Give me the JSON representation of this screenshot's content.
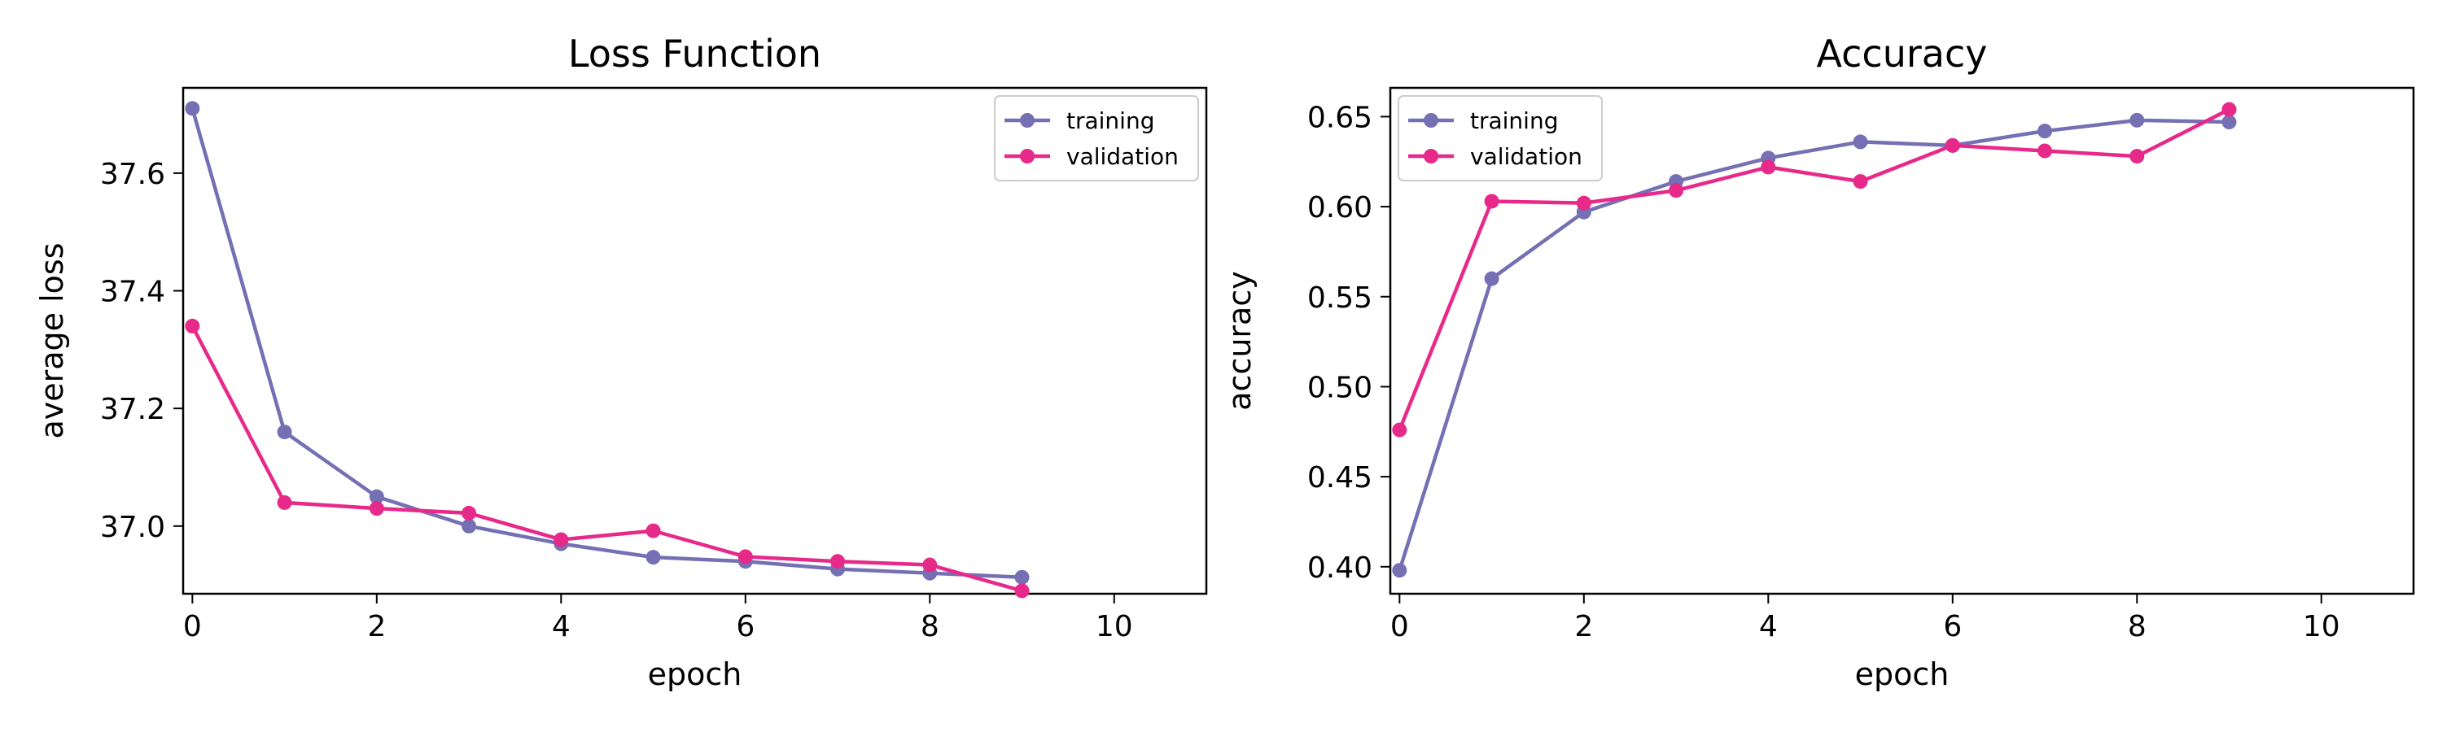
{
  "chart_data": [
    {
      "type": "line",
      "title": "Loss Function",
      "xlabel": "epoch",
      "ylabel": "average loss",
      "xlim": [
        -0.1,
        11
      ],
      "ylim": [
        36.885,
        37.745
      ],
      "xticks": [
        0,
        2,
        4,
        6,
        8,
        10
      ],
      "yticks": [
        37.0,
        37.2,
        37.4,
        37.6
      ],
      "ytick_labels": [
        "37.0",
        "37.2",
        "37.4",
        "37.6"
      ],
      "legend_position": "top-right",
      "grid": false,
      "x": [
        0,
        1,
        2,
        3,
        4,
        5,
        6,
        7,
        8,
        9
      ],
      "series": [
        {
          "name": "training",
          "color": "#7570b3",
          "values": [
            37.71,
            37.16,
            37.05,
            37.0,
            36.97,
            36.947,
            36.94,
            36.927,
            36.92,
            36.913
          ]
        },
        {
          "name": "validation",
          "color": "#e7298a",
          "values": [
            37.34,
            37.04,
            37.03,
            37.022,
            36.977,
            36.992,
            36.948,
            36.94,
            36.934,
            36.89
          ]
        }
      ]
    },
    {
      "type": "line",
      "title": "Accuracy",
      "xlabel": "epoch",
      "ylabel": "accuracy",
      "xlim": [
        -0.1,
        11
      ],
      "ylim": [
        0.385,
        0.666
      ],
      "xticks": [
        0,
        2,
        4,
        6,
        8,
        10
      ],
      "yticks": [
        0.4,
        0.45,
        0.5,
        0.55,
        0.6,
        0.65
      ],
      "ytick_labels": [
        "0.40",
        "0.45",
        "0.50",
        "0.55",
        "0.60",
        "0.65"
      ],
      "legend_position": "top-left",
      "grid": false,
      "x": [
        0,
        1,
        2,
        3,
        4,
        5,
        6,
        7,
        8,
        9
      ],
      "series": [
        {
          "name": "training",
          "color": "#7570b3",
          "values": [
            0.398,
            0.56,
            0.597,
            0.614,
            0.627,
            0.636,
            0.634,
            0.642,
            0.648,
            0.647
          ]
        },
        {
          "name": "validation",
          "color": "#e7298a",
          "values": [
            0.476,
            0.603,
            0.602,
            0.609,
            0.622,
            0.614,
            0.634,
            0.631,
            0.628,
            0.654
          ]
        }
      ]
    }
  ]
}
